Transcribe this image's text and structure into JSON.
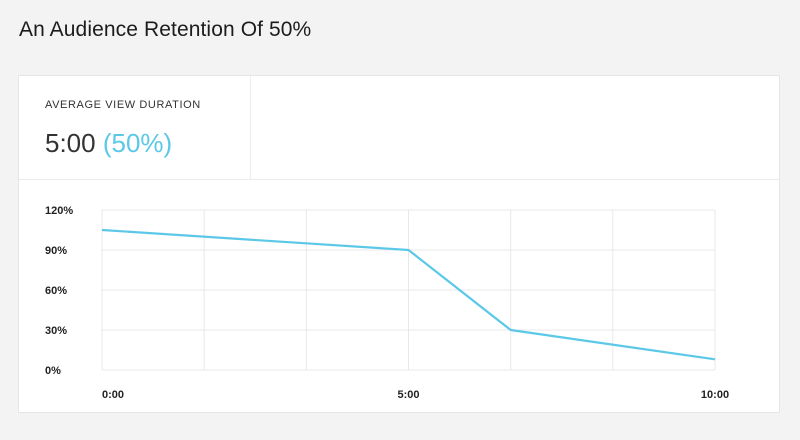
{
  "page": {
    "title": "An Audience Retention Of 50%"
  },
  "metric": {
    "label": "AVERAGE VIEW DURATION",
    "value": "5:00",
    "percent": "(50%)",
    "accent_color": "#5bc8e8"
  },
  "chart_data": {
    "type": "line",
    "x": [
      0,
      300,
      400,
      600
    ],
    "x_unit": "seconds",
    "x_ticks": [
      {
        "value": 0,
        "label": "0:00"
      },
      {
        "value": 300,
        "label": "5:00"
      },
      {
        "value": 600,
        "label": "10:00"
      }
    ],
    "xlim": [
      0,
      600
    ],
    "series": [
      {
        "values": [
          105,
          90,
          30,
          8
        ],
        "color": "#5bc8e8"
      }
    ],
    "y_ticks": [
      "0%",
      "30%",
      "60%",
      "90%",
      "120%"
    ],
    "y_tick_values": [
      0,
      30,
      60,
      90,
      120
    ],
    "ylim": [
      0,
      120
    ],
    "grid": true,
    "legend": "none"
  }
}
